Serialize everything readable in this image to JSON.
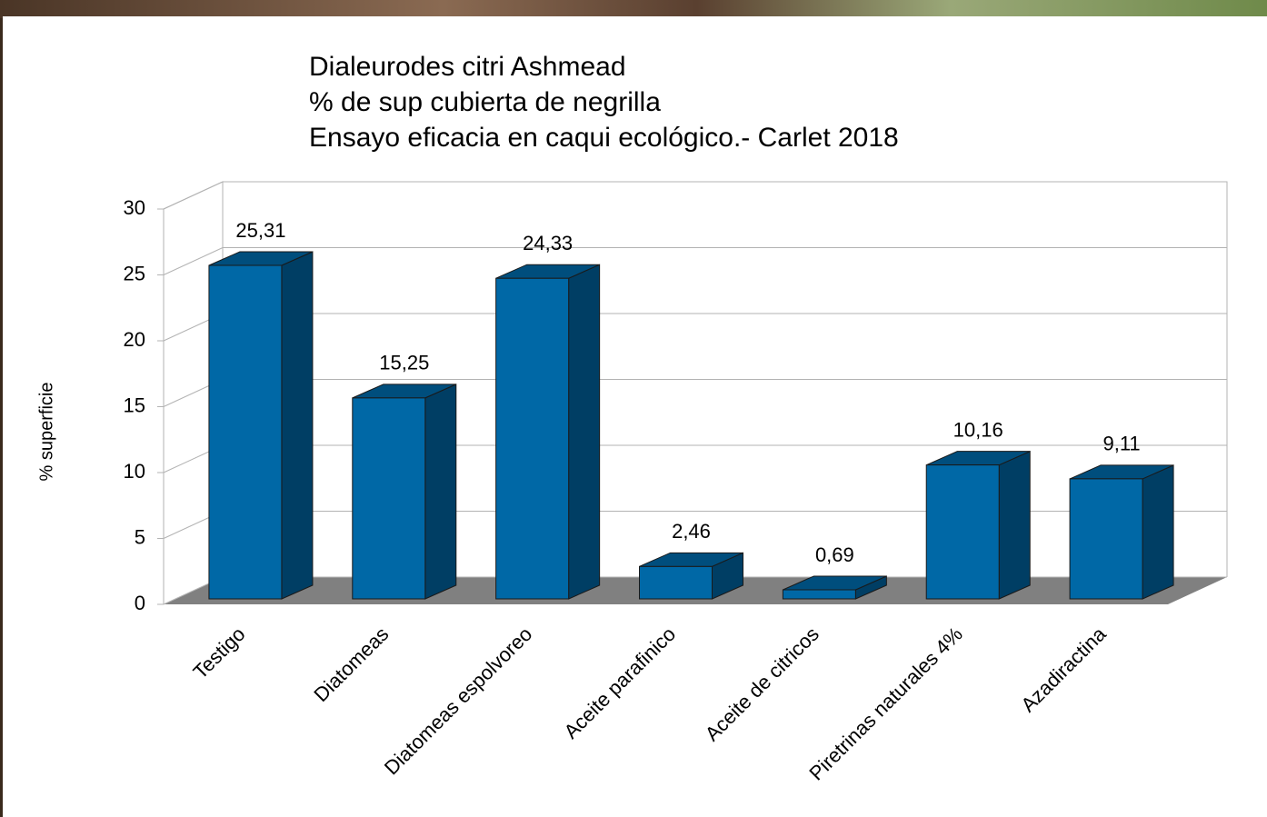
{
  "chart_data": {
    "type": "bar3d",
    "title": [
      "Dialeurodes citri Ashmead",
      "% de sup cubierta de negrilla",
      "Ensayo eficacia en caqui ecológico.- Carlet 2018"
    ],
    "ylabel": "% superficie",
    "categories": [
      "Testigo",
      "Diatomeas",
      "Diatomeas espolvoreo",
      "Aceite parafinico",
      "Aceite de citricos",
      "Piretrinas naturales 4%",
      "Azadiractina"
    ],
    "values": [
      25.31,
      15.25,
      24.33,
      2.46,
      0.69,
      10.16,
      9.11
    ],
    "value_labels": [
      "25,31",
      "15,25",
      "24,33",
      "2,46",
      "0,69",
      "10,16",
      "9,11"
    ],
    "color": "#0068a6",
    "ylim": [
      0,
      30
    ],
    "yticks": [
      0,
      5,
      10,
      15,
      20,
      25,
      30
    ],
    "grid": true
  }
}
